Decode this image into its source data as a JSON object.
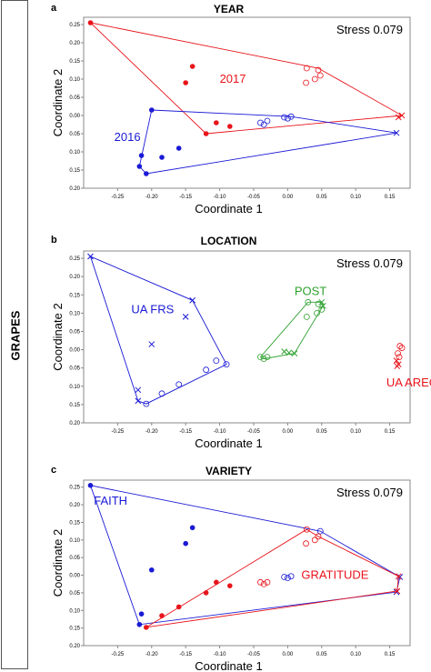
{
  "side_label": "GRAPES",
  "colors": {
    "red": "#e8141b",
    "blue": "#1a1ad6",
    "green": "#2ea02e",
    "axis": "#888888"
  },
  "chart_data": [
    {
      "type": "scatter",
      "panel_letter": "a",
      "title": "YEAR",
      "stress": "Stress 0.079",
      "xlabel": "Coordinate 1",
      "ylabel": "Coordinate 2",
      "xlim": [
        -0.3,
        0.18
      ],
      "ylim": [
        -0.2,
        0.27
      ],
      "y_reversed_labels": true,
      "x_ticks": [
        -0.25,
        -0.2,
        -0.15,
        -0.1,
        -0.05,
        0.0,
        0.05,
        0.1,
        0.15
      ],
      "x_tick_labels": [
        "-0.25",
        "-0.20",
        "-0.15",
        "-0.10",
        "-0.05",
        "0.00",
        "0.05",
        "0.10",
        "0.15"
      ],
      "y_ticks": [
        0.25,
        0.2,
        0.15,
        0.1,
        0.05,
        0.0,
        -0.05,
        -0.1,
        -0.15,
        -0.2
      ],
      "y_tick_labels": [
        "0.25",
        "0.20",
        "0.15",
        "0.10",
        "0.05",
        "0.00",
        "0.05",
        "0.10",
        "0.15",
        "0.20"
      ],
      "labels": [
        {
          "text": "2017",
          "x": -0.1,
          "y": 0.09,
          "color": "red"
        },
        {
          "text": "2016",
          "x": -0.255,
          "y": -0.07,
          "color": "blue"
        }
      ],
      "series": [
        {
          "name": "2017",
          "color": "red",
          "points": [
            {
              "x": -0.29,
              "y": 0.255,
              "m": "dot"
            },
            {
              "x": -0.14,
              "y": 0.135,
              "m": "dot"
            },
            {
              "x": -0.15,
              "y": 0.09,
              "m": "dot"
            },
            {
              "x": -0.105,
              "y": -0.02,
              "m": "dot"
            },
            {
              "x": -0.085,
              "y": -0.03,
              "m": "dot"
            },
            {
              "x": -0.12,
              "y": -0.05,
              "m": "dot"
            },
            {
              "x": 0.028,
              "y": 0.13,
              "m": "ring"
            },
            {
              "x": 0.045,
              "y": 0.125,
              "m": "ring"
            },
            {
              "x": 0.048,
              "y": 0.11,
              "m": "ring"
            },
            {
              "x": 0.04,
              "y": 0.1,
              "m": "ring"
            },
            {
              "x": 0.027,
              "y": 0.09,
              "m": "ring"
            },
            {
              "x": 0.163,
              "y": -0.005,
              "m": "x"
            },
            {
              "x": 0.168,
              "y": 0.0,
              "m": "x"
            }
          ],
          "hull": [
            [
              -0.29,
              0.255
            ],
            [
              0.045,
              0.13
            ],
            [
              0.168,
              0.0
            ],
            [
              -0.12,
              -0.05
            ]
          ]
        },
        {
          "name": "2016",
          "color": "blue",
          "points": [
            {
              "x": -0.2,
              "y": 0.015,
              "m": "dot"
            },
            {
              "x": -0.16,
              "y": -0.09,
              "m": "dot"
            },
            {
              "x": -0.185,
              "y": -0.115,
              "m": "dot"
            },
            {
              "x": -0.215,
              "y": -0.11,
              "m": "dot"
            },
            {
              "x": -0.218,
              "y": -0.14,
              "m": "dot"
            },
            {
              "x": -0.208,
              "y": -0.16,
              "m": "dot"
            },
            {
              "x": -0.04,
              "y": -0.02,
              "m": "ring"
            },
            {
              "x": -0.03,
              "y": -0.015,
              "m": "ring"
            },
            {
              "x": -0.035,
              "y": -0.025,
              "m": "ring"
            },
            {
              "x": -0.005,
              "y": -0.005,
              "m": "ring"
            },
            {
              "x": 0.005,
              "y": -0.003,
              "m": "ring"
            },
            {
              "x": 0.0,
              "y": -0.008,
              "m": "ring"
            },
            {
              "x": 0.16,
              "y": -0.048,
              "m": "x"
            }
          ],
          "hull": [
            [
              -0.2,
              0.015
            ],
            [
              0.005,
              -0.003
            ],
            [
              0.16,
              -0.048
            ],
            [
              -0.208,
              -0.16
            ],
            [
              -0.218,
              -0.14
            ]
          ]
        }
      ]
    },
    {
      "type": "scatter",
      "panel_letter": "b",
      "title": "LOCATION",
      "stress": "Stress 0.079",
      "xlabel": "Coordinate 1",
      "ylabel": "Coordinate 2",
      "xlim": [
        -0.3,
        0.18
      ],
      "ylim": [
        -0.2,
        0.27
      ],
      "y_reversed_labels": true,
      "x_ticks": [
        -0.25,
        -0.2,
        -0.15,
        -0.1,
        -0.05,
        0.0,
        0.05,
        0.1,
        0.15
      ],
      "x_tick_labels": [
        "-0.25",
        "-0.20",
        "-0.15",
        "-0.10",
        "-0.05",
        "0.00",
        "0.05",
        "0.10",
        "0.15"
      ],
      "y_ticks": [
        0.25,
        0.2,
        0.15,
        0.1,
        0.05,
        0.0,
        -0.05,
        -0.1,
        -0.15,
        -0.2
      ],
      "y_tick_labels": [
        "0.25",
        "0.20",
        "0.15",
        "0.10",
        "0.05",
        "0.00",
        "0.05",
        "0.10",
        "0.15",
        "0.20"
      ],
      "labels": [
        {
          "text": "UA FRS",
          "x": -0.23,
          "y": 0.1,
          "color": "blue"
        },
        {
          "text": "POST",
          "x": 0.01,
          "y": 0.15,
          "color": "green"
        },
        {
          "text": "UA AREC",
          "x": 0.145,
          "y": -0.1,
          "color": "red"
        }
      ],
      "series": [
        {
          "name": "UA FRS",
          "color": "blue",
          "points": [
            {
              "x": -0.29,
              "y": 0.255,
              "m": "x"
            },
            {
              "x": -0.14,
              "y": 0.135,
              "m": "x"
            },
            {
              "x": -0.15,
              "y": 0.09,
              "m": "x"
            },
            {
              "x": -0.2,
              "y": 0.015,
              "m": "x"
            },
            {
              "x": -0.22,
              "y": -0.11,
              "m": "x"
            },
            {
              "x": -0.22,
              "y": -0.14,
              "m": "x"
            },
            {
              "x": -0.208,
              "y": -0.148,
              "m": "ring"
            },
            {
              "x": -0.185,
              "y": -0.12,
              "m": "ring"
            },
            {
              "x": -0.16,
              "y": -0.095,
              "m": "ring"
            },
            {
              "x": -0.12,
              "y": -0.055,
              "m": "ring"
            },
            {
              "x": -0.105,
              "y": -0.03,
              "m": "ring"
            },
            {
              "x": -0.09,
              "y": -0.04,
              "m": "ring"
            }
          ],
          "hull": [
            [
              -0.29,
              0.255
            ],
            [
              -0.14,
              0.135
            ],
            [
              -0.09,
              -0.04
            ],
            [
              -0.208,
              -0.148
            ],
            [
              -0.22,
              -0.14
            ]
          ]
        },
        {
          "name": "POST",
          "color": "green",
          "points": [
            {
              "x": 0.03,
              "y": 0.13,
              "m": "ring"
            },
            {
              "x": 0.045,
              "y": 0.125,
              "m": "ring"
            },
            {
              "x": 0.05,
              "y": 0.11,
              "m": "ring"
            },
            {
              "x": 0.043,
              "y": 0.1,
              "m": "ring"
            },
            {
              "x": 0.028,
              "y": 0.09,
              "m": "ring"
            },
            {
              "x": 0.05,
              "y": 0.13,
              "m": "x"
            },
            {
              "x": 0.052,
              "y": 0.12,
              "m": "x"
            },
            {
              "x": -0.04,
              "y": -0.02,
              "m": "ring"
            },
            {
              "x": -0.035,
              "y": -0.025,
              "m": "ring"
            },
            {
              "x": -0.03,
              "y": -0.02,
              "m": "ring"
            },
            {
              "x": -0.005,
              "y": -0.005,
              "m": "x"
            },
            {
              "x": 0.002,
              "y": -0.008,
              "m": "x"
            },
            {
              "x": 0.01,
              "y": -0.01,
              "m": "x"
            }
          ],
          "hull": [
            [
              -0.04,
              -0.02
            ],
            [
              0.03,
              0.13
            ],
            [
              0.05,
              0.13
            ],
            [
              0.052,
              0.12
            ],
            [
              0.01,
              -0.01
            ],
            [
              -0.035,
              -0.025
            ]
          ]
        },
        {
          "name": "UA AREC",
          "color": "red",
          "points": [
            {
              "x": 0.165,
              "y": 0.01,
              "m": "ring"
            },
            {
              "x": 0.168,
              "y": 0.005,
              "m": "ring"
            },
            {
              "x": 0.162,
              "y": -0.01,
              "m": "ring"
            },
            {
              "x": 0.164,
              "y": -0.02,
              "m": "ring"
            },
            {
              "x": 0.16,
              "y": -0.03,
              "m": "x"
            },
            {
              "x": 0.163,
              "y": -0.04,
              "m": "x"
            },
            {
              "x": 0.161,
              "y": -0.045,
              "m": "x"
            }
          ],
          "hull": []
        }
      ]
    },
    {
      "type": "scatter",
      "panel_letter": "c",
      "title": "VARIETY",
      "stress": "Stress 0.079",
      "xlabel": "Coordinate 1",
      "ylabel": "Coordinate 2",
      "xlim": [
        -0.3,
        0.18
      ],
      "ylim": [
        -0.2,
        0.27
      ],
      "y_reversed_labels": true,
      "x_ticks": [
        -0.25,
        -0.2,
        -0.15,
        -0.1,
        -0.05,
        0.0,
        0.05,
        0.1,
        0.15
      ],
      "x_tick_labels": [
        "-0.25",
        "-0.20",
        "-0.15",
        "-0.10",
        "-0.05",
        "0.00",
        "0.05",
        "0.10",
        "0.15"
      ],
      "y_ticks": [
        0.25,
        0.2,
        0.15,
        0.1,
        0.05,
        0.0,
        -0.05,
        -0.1,
        -0.15,
        -0.2
      ],
      "y_tick_labels": [
        "0.25",
        "0.20",
        "0.15",
        "0.10",
        "0.05",
        "0.00",
        "0.05",
        "0.10",
        "0.15",
        "0.20"
      ],
      "labels": [
        {
          "text": "FAITH",
          "x": -0.285,
          "y": 0.2,
          "color": "blue"
        },
        {
          "text": "GRATITUDE",
          "x": 0.02,
          "y": -0.01,
          "color": "red"
        }
      ],
      "series": [
        {
          "name": "FAITH",
          "color": "blue",
          "points": [
            {
              "x": -0.29,
              "y": 0.255,
              "m": "dot"
            },
            {
              "x": -0.14,
              "y": 0.135,
              "m": "dot"
            },
            {
              "x": -0.15,
              "y": 0.09,
              "m": "dot"
            },
            {
              "x": -0.2,
              "y": 0.015,
              "m": "dot"
            },
            {
              "x": -0.215,
              "y": -0.11,
              "m": "dot"
            },
            {
              "x": -0.218,
              "y": -0.14,
              "m": "dot"
            },
            {
              "x": -0.005,
              "y": -0.005,
              "m": "ring"
            },
            {
              "x": 0.005,
              "y": -0.003,
              "m": "ring"
            },
            {
              "x": 0.0,
              "y": -0.008,
              "m": "ring"
            },
            {
              "x": 0.048,
              "y": 0.125,
              "m": "ring"
            },
            {
              "x": 0.165,
              "y": -0.005,
              "m": "x"
            },
            {
              "x": 0.16,
              "y": -0.048,
              "m": "x"
            }
          ],
          "hull": [
            [
              -0.29,
              0.255
            ],
            [
              0.048,
              0.125
            ],
            [
              0.165,
              -0.005
            ],
            [
              0.16,
              -0.048
            ],
            [
              -0.218,
              -0.14
            ]
          ]
        },
        {
          "name": "GRATITUDE",
          "color": "red",
          "points": [
            {
              "x": -0.105,
              "y": -0.02,
              "m": "dot"
            },
            {
              "x": -0.12,
              "y": -0.05,
              "m": "dot"
            },
            {
              "x": -0.085,
              "y": -0.03,
              "m": "dot"
            },
            {
              "x": -0.16,
              "y": -0.09,
              "m": "dot"
            },
            {
              "x": -0.185,
              "y": -0.115,
              "m": "dot"
            },
            {
              "x": -0.208,
              "y": -0.148,
              "m": "dot"
            },
            {
              "x": -0.04,
              "y": -0.02,
              "m": "ring"
            },
            {
              "x": -0.035,
              "y": -0.025,
              "m": "ring"
            },
            {
              "x": -0.03,
              "y": -0.02,
              "m": "ring"
            },
            {
              "x": 0.028,
              "y": 0.13,
              "m": "ring"
            },
            {
              "x": 0.04,
              "y": 0.1,
              "m": "ring"
            },
            {
              "x": 0.027,
              "y": 0.09,
              "m": "ring"
            },
            {
              "x": 0.045,
              "y": 0.11,
              "m": "ring"
            },
            {
              "x": 0.163,
              "y": -0.003,
              "m": "x"
            },
            {
              "x": 0.161,
              "y": -0.045,
              "m": "x"
            }
          ],
          "hull": [
            [
              -0.208,
              -0.148
            ],
            [
              0.028,
              0.13
            ],
            [
              0.045,
              0.11
            ],
            [
              0.163,
              -0.003
            ],
            [
              0.161,
              -0.045
            ]
          ]
        }
      ]
    }
  ]
}
